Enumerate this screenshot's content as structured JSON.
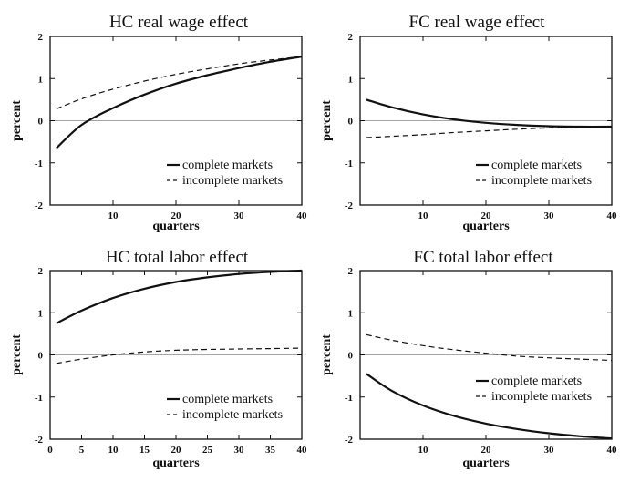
{
  "chart_data": [
    {
      "type": "line",
      "title": "HC real wage effect",
      "xlabel": "quarters",
      "ylabel": "percent",
      "xlim": [
        0,
        40
      ],
      "ylim": [
        -2,
        2
      ],
      "xticks": [
        10,
        20,
        30,
        40
      ],
      "yticks": [
        -2,
        -1,
        0,
        1,
        2
      ],
      "grid": false,
      "zero_line": true,
      "legend_position": "lower-right",
      "series": [
        {
          "name": "complete markets",
          "style": "solid",
          "x": [
            1,
            5,
            10,
            15,
            20,
            25,
            30,
            35,
            40
          ],
          "y": [
            -0.65,
            -0.1,
            0.3,
            0.62,
            0.88,
            1.08,
            1.25,
            1.4,
            1.52
          ]
        },
        {
          "name": "incomplete markets",
          "style": "dashed",
          "x": [
            1,
            5,
            10,
            15,
            20,
            25,
            30,
            35,
            40
          ],
          "y": [
            0.28,
            0.52,
            0.75,
            0.94,
            1.1,
            1.23,
            1.35,
            1.44,
            1.52
          ]
        }
      ]
    },
    {
      "type": "line",
      "title": "FC real wage effect",
      "xlabel": "quarters",
      "ylabel": "percent",
      "xlim": [
        0,
        40
      ],
      "ylim": [
        -2,
        2
      ],
      "xticks": [
        10,
        20,
        30,
        40
      ],
      "yticks": [
        -2,
        -1,
        0,
        1,
        2
      ],
      "grid": false,
      "zero_line": true,
      "legend_position": "lower-right",
      "series": [
        {
          "name": "complete markets",
          "style": "solid",
          "x": [
            1,
            5,
            10,
            15,
            20,
            25,
            30,
            35,
            40
          ],
          "y": [
            0.5,
            0.32,
            0.15,
            0.03,
            -0.05,
            -0.1,
            -0.13,
            -0.14,
            -0.14
          ]
        },
        {
          "name": "incomplete markets",
          "style": "dashed",
          "x": [
            1,
            5,
            10,
            15,
            20,
            25,
            30,
            35,
            40
          ],
          "y": [
            -0.4,
            -0.37,
            -0.33,
            -0.28,
            -0.24,
            -0.2,
            -0.17,
            -0.15,
            -0.14
          ]
        }
      ]
    },
    {
      "type": "line",
      "title": "HC total labor effect",
      "xlabel": "quarters",
      "ylabel": "percent",
      "xlim": [
        0,
        40
      ],
      "ylim": [
        -2,
        2
      ],
      "xticks": [
        0,
        5,
        10,
        15,
        20,
        25,
        30,
        35,
        40
      ],
      "yticks": [
        -2,
        -1,
        0,
        1,
        2
      ],
      "grid": false,
      "zero_line": true,
      "legend_position": "lower-right",
      "series": [
        {
          "name": "complete markets",
          "style": "solid",
          "x": [
            1,
            5,
            10,
            15,
            20,
            25,
            30,
            35,
            40
          ],
          "y": [
            0.75,
            1.05,
            1.35,
            1.57,
            1.73,
            1.84,
            1.92,
            1.97,
            2.0
          ]
        },
        {
          "name": "incomplete markets",
          "style": "dashed",
          "x": [
            1,
            5,
            10,
            15,
            20,
            25,
            30,
            35,
            40
          ],
          "y": [
            -0.2,
            -0.1,
            0.0,
            0.07,
            0.11,
            0.13,
            0.14,
            0.15,
            0.16
          ]
        }
      ]
    },
    {
      "type": "line",
      "title": "FC total labor effect",
      "xlabel": "quarters",
      "ylabel": "percent",
      "xlim": [
        0,
        40
      ],
      "ylim": [
        -2,
        2
      ],
      "xticks": [
        10,
        20,
        30,
        40
      ],
      "yticks": [
        -2,
        -1,
        0,
        1,
        2
      ],
      "grid": false,
      "zero_line": true,
      "legend_position": "lower-right",
      "series": [
        {
          "name": "complete markets",
          "style": "solid",
          "x": [
            1,
            5,
            10,
            15,
            20,
            25,
            30,
            35,
            40
          ],
          "y": [
            -0.45,
            -0.85,
            -1.2,
            -1.45,
            -1.63,
            -1.76,
            -1.86,
            -1.93,
            -1.98
          ]
        },
        {
          "name": "incomplete markets",
          "style": "dashed",
          "x": [
            1,
            5,
            10,
            15,
            20,
            25,
            30,
            35,
            40
          ],
          "y": [
            0.48,
            0.35,
            0.22,
            0.12,
            0.04,
            -0.03,
            -0.07,
            -0.1,
            -0.13
          ]
        }
      ]
    }
  ]
}
